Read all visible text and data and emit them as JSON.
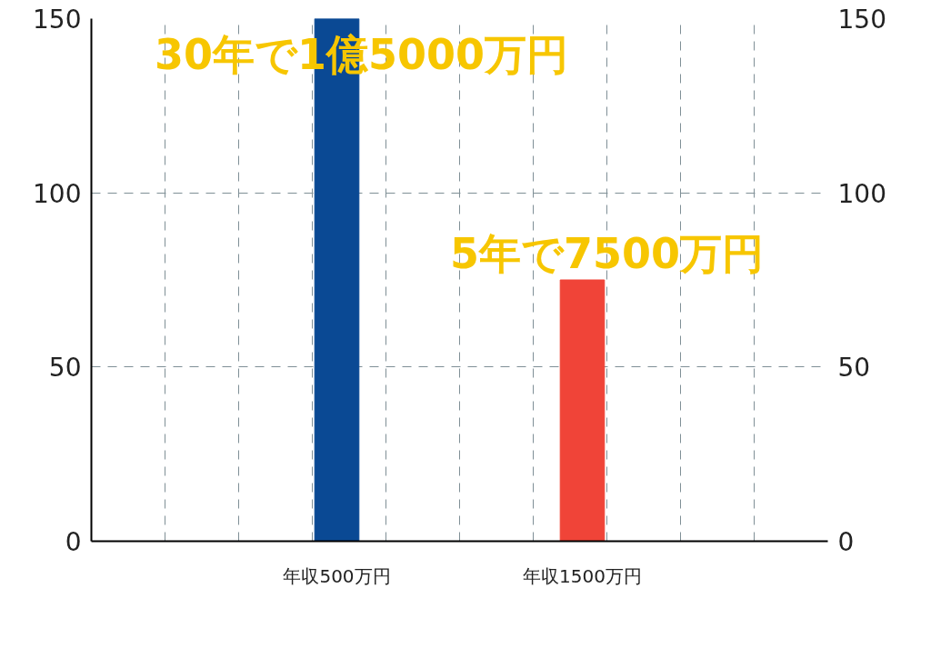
{
  "chart_data": {
    "type": "bar",
    "categories": [
      "年収500万円",
      "年収1500万円"
    ],
    "values": [
      150,
      75
    ],
    "colors": [
      "#0a4994",
      "#f04438"
    ],
    "ylim": [
      0,
      150
    ],
    "yticks": [
      0,
      50,
      100,
      150
    ],
    "y2lim": [
      0,
      150
    ],
    "y2ticks": [
      0,
      50,
      100,
      150
    ],
    "grid": true,
    "annotations": [
      {
        "text": "30年で1億5000万円",
        "x": "年収500万円",
        "y": 150
      },
      {
        "text": "5年で7500万円",
        "x": "年収1500万円",
        "y": 75
      }
    ]
  }
}
